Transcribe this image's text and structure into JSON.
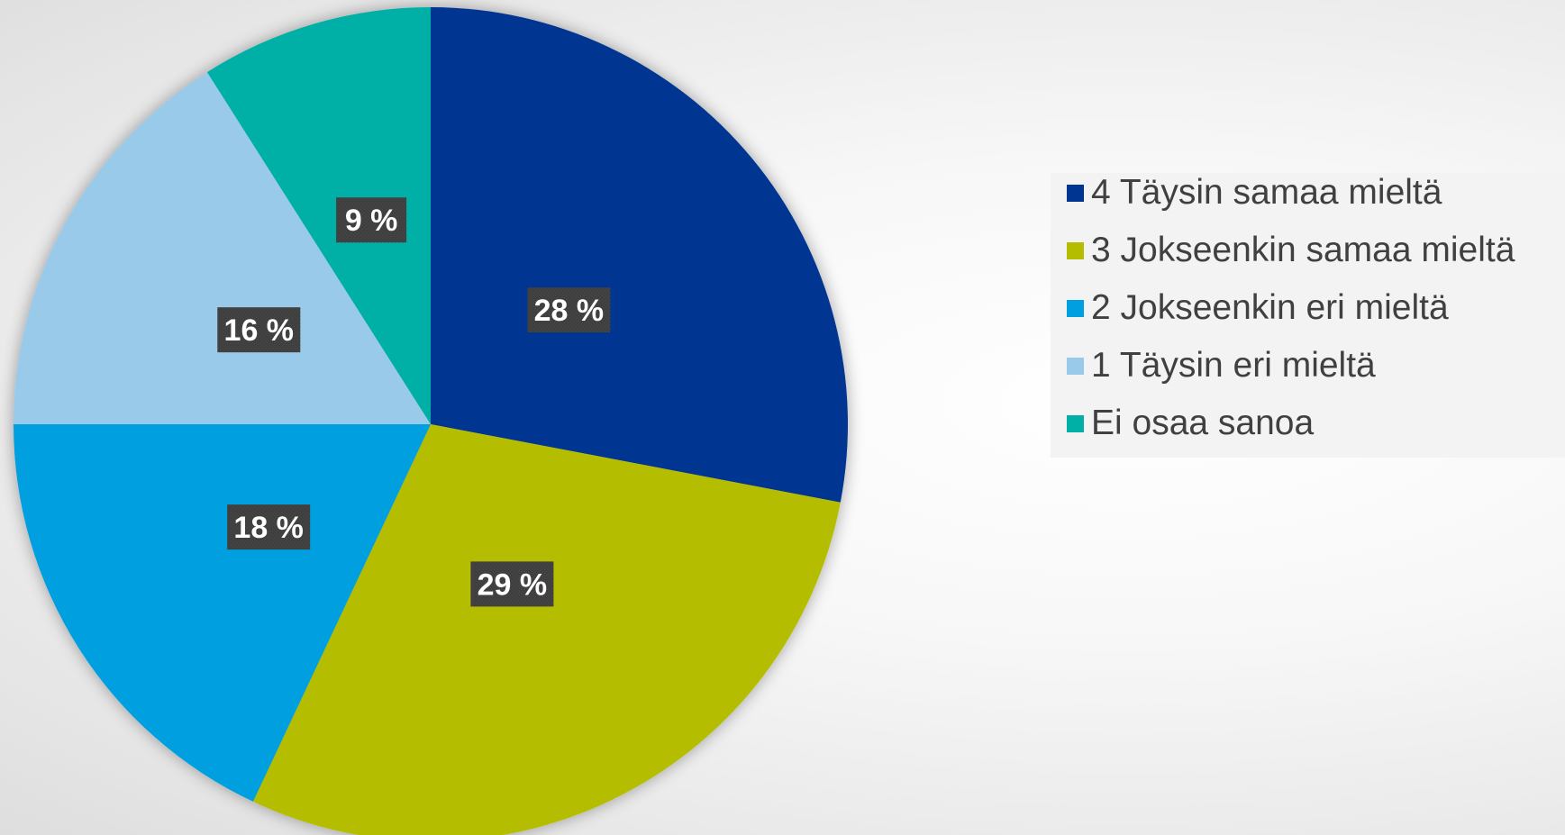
{
  "chart_data": {
    "type": "pie",
    "title": "",
    "categories": [
      "4 Täysin samaa mieltä",
      "3 Jokseenkin samaa mieltä",
      "2 Jokseenkin eri mieltä",
      "1 Täysin eri mieltä",
      "Ei osaa sanoa"
    ],
    "values": [
      28,
      29,
      18,
      16,
      9
    ],
    "data_labels": [
      "28 %",
      "29 %",
      "18 %",
      "16 %",
      "9 %"
    ],
    "colors": [
      "#003591",
      "#b5bd00",
      "#009fe0",
      "#99caea",
      "#00b0a6"
    ],
    "legend_position": "right",
    "start_angle": "12 o'clock",
    "direction": "clockwise"
  },
  "legend": {
    "items": [
      {
        "label": "4 Täysin samaa mieltä",
        "color": "#003591"
      },
      {
        "label": "3 Jokseenkin samaa mieltä",
        "color": "#b5bd00"
      },
      {
        "label": "2 Jokseenkin eri mieltä",
        "color": "#009fe0"
      },
      {
        "label": "1 Täysin eri mieltä",
        "color": "#99caea"
      },
      {
        "label": "Ei osaa sanoa",
        "color": "#00b0a6"
      }
    ]
  }
}
